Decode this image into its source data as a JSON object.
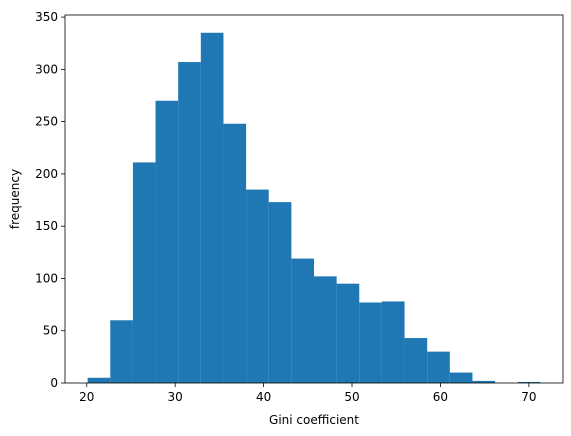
{
  "chart_data": {
    "type": "histogram",
    "xlabel": "Gini coefficient",
    "ylabel": "frequency",
    "bins": [
      20.1,
      22.66,
      25.22,
      27.78,
      30.34,
      32.9,
      35.46,
      38.02,
      40.58,
      43.14,
      45.7,
      48.26,
      50.82,
      53.38,
      55.94,
      58.5,
      61.06,
      63.62,
      66.18,
      68.74,
      71.3
    ],
    "values": [
      5,
      60,
      211,
      270,
      307,
      335,
      248,
      185,
      173,
      119,
      102,
      95,
      77,
      78,
      43,
      30,
      10,
      2,
      0,
      1
    ],
    "color": "#1f77b4",
    "xlim": [
      17.54,
      73.86
    ],
    "ylim": [
      0,
      352
    ],
    "xticks": [
      20,
      30,
      40,
      50,
      60,
      70
    ],
    "yticks": [
      0,
      50,
      100,
      150,
      200,
      250,
      300,
      350
    ]
  }
}
